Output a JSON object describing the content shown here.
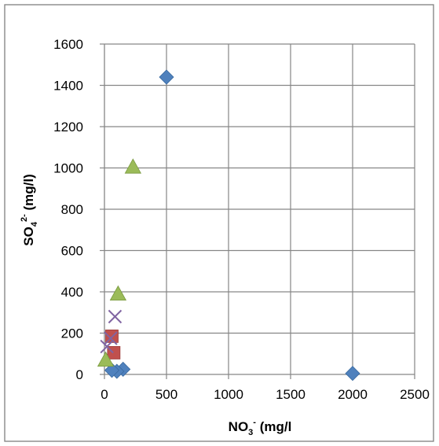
{
  "chart_data": {
    "type": "scatter",
    "title": "",
    "xlabel": "NO3- (mg/l",
    "ylabel": "SO42- (mg/l)",
    "xlabel_parts": {
      "base": "NO",
      "sub": "3",
      "sup": "-",
      "rest": " (mg/l"
    },
    "ylabel_parts": {
      "base": "SO",
      "sub": "4",
      "sup": "2-",
      "rest": " (mg/l)"
    },
    "xlim": [
      0,
      2500
    ],
    "ylim": [
      0,
      1600
    ],
    "x_ticks": [
      0,
      500,
      1000,
      1500,
      2000,
      2500
    ],
    "y_ticks": [
      0,
      200,
      400,
      600,
      800,
      1000,
      1200,
      1400,
      1600
    ],
    "grid": true,
    "legend": "none",
    "series": [
      {
        "marker": "diamond",
        "color": "#4f81bd",
        "points": [
          {
            "x": 500,
            "y": 1440
          },
          {
            "x": 2000,
            "y": 5
          },
          {
            "x": 150,
            "y": 25
          },
          {
            "x": 100,
            "y": 15
          },
          {
            "x": 60,
            "y": 20
          }
        ]
      },
      {
        "marker": "square",
        "color": "#c0504d",
        "points": [
          {
            "x": 60,
            "y": 185
          },
          {
            "x": 75,
            "y": 105
          }
        ]
      },
      {
        "marker": "triangle",
        "color": "#9bbb59",
        "points": [
          {
            "x": 230,
            "y": 1005
          },
          {
            "x": 110,
            "y": 390
          },
          {
            "x": 10,
            "y": 70
          }
        ]
      },
      {
        "marker": "x",
        "color": "#8064a2",
        "points": [
          {
            "x": 85,
            "y": 280
          },
          {
            "x": 20,
            "y": 135
          },
          {
            "x": 50,
            "y": 175
          }
        ]
      }
    ]
  }
}
